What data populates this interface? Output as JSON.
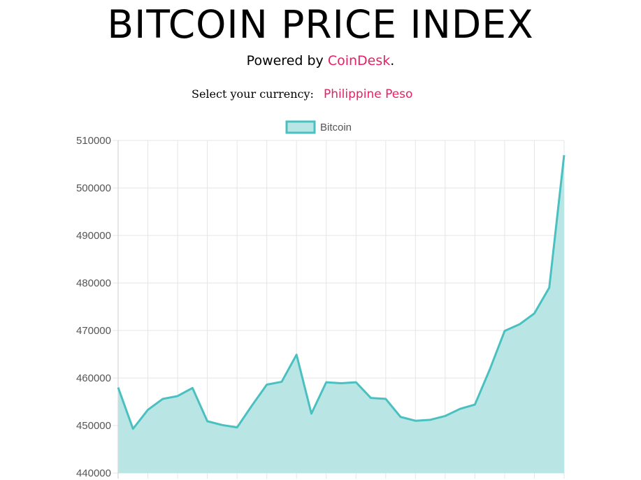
{
  "header": {
    "title": "BITCOIN PRICE INDEX",
    "powered_prefix": "Powered by ",
    "powered_link": "CoinDesk",
    "powered_suffix": "."
  },
  "currency": {
    "label": "Select your currency:",
    "selected": "Philippine Peso"
  },
  "colors": {
    "accent": "#e91e63",
    "line": "#4bc0c0",
    "fill": "#b9e5e5",
    "grid": "#e5e5e5"
  },
  "chart_data": {
    "type": "area",
    "legend_position": "top",
    "grid": true,
    "ylim": [
      440000,
      510000
    ],
    "yticks": [
      510000,
      500000,
      490000,
      480000,
      470000,
      460000,
      450000,
      440000
    ],
    "series": [
      {
        "name": "Bitcoin",
        "values": [
          458000,
          449300,
          453300,
          455600,
          456200,
          457900,
          450900,
          450100,
          449600,
          454200,
          458600,
          459200,
          464900,
          452500,
          459100,
          458900,
          459100,
          455800,
          455600,
          451800,
          451000,
          451200,
          452000,
          453500,
          454400,
          461800,
          469900,
          471300,
          473600,
          479000,
          506900
        ]
      }
    ]
  }
}
